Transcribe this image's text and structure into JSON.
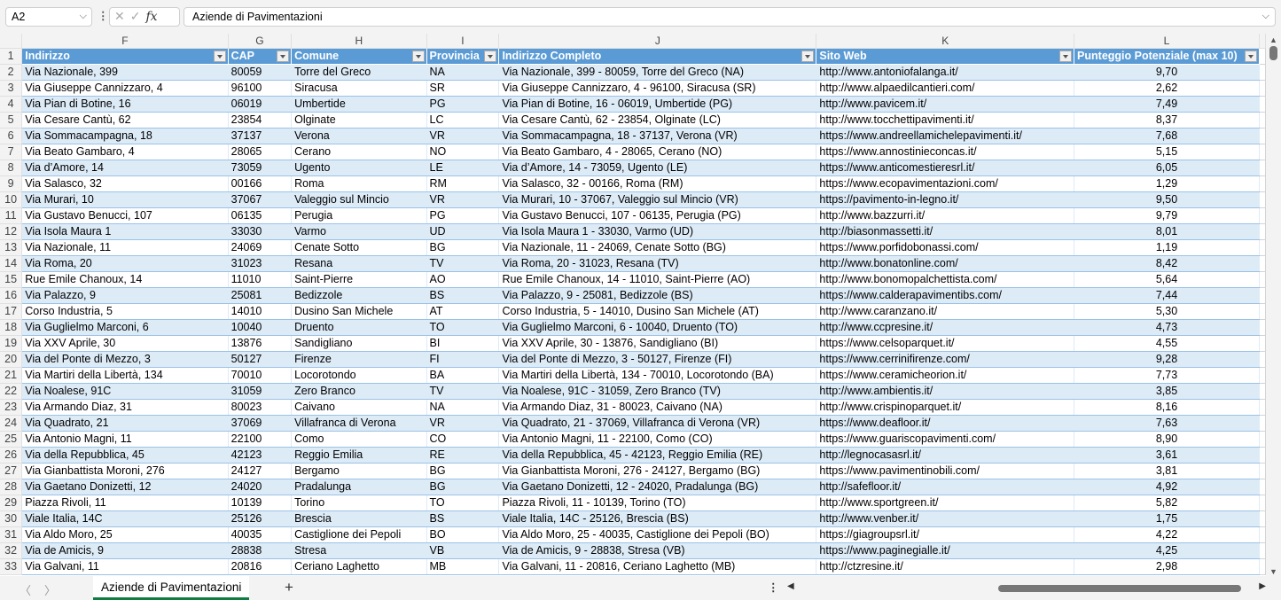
{
  "formula_bar": {
    "name_box": "A2",
    "formula": "Aziende di Pavimentazioni"
  },
  "columns": [
    "F",
    "G",
    "H",
    "I",
    "J",
    "K",
    "L"
  ],
  "headers": [
    "Indirizzo",
    "CAP",
    "Comune",
    "Provincia",
    "Indirizzo Completo",
    "Sito Web",
    "Punteggio Potenziale (max 10)"
  ],
  "rows": [
    [
      "2",
      "Via Nazionale, 399",
      "80059",
      "Torre del Greco",
      "NA",
      "Via Nazionale, 399 - 80059, Torre del Greco (NA)",
      "http://www.antoniofalanga.it/",
      "9,70"
    ],
    [
      "3",
      "Via Giuseppe Cannizzaro, 4",
      "96100",
      "Siracusa",
      "SR",
      "Via Giuseppe Cannizzaro, 4 - 96100, Siracusa (SR)",
      "http://www.alpaedilcantieri.com/",
      "2,62"
    ],
    [
      "4",
      "Via Pian di Botine, 16",
      "06019",
      "Umbertide",
      "PG",
      "Via Pian di Botine, 16 - 06019, Umbertide (PG)",
      "http://www.pavicem.it/",
      "7,49"
    ],
    [
      "5",
      "Via Cesare Cantù, 62",
      "23854",
      "Olginate",
      "LC",
      "Via Cesare Cantù, 62 - 23854, Olginate (LC)",
      "http://www.tocchettipavimenti.it/",
      "8,37"
    ],
    [
      "6",
      "Via Sommacampagna, 18",
      "37137",
      "Verona",
      "VR",
      "Via Sommacampagna, 18 - 37137, Verona (VR)",
      "https://www.andreellamichelepavimenti.it/",
      "7,68"
    ],
    [
      "7",
      "Via Beato Gambaro, 4",
      "28065",
      "Cerano",
      "NO",
      "Via Beato Gambaro, 4 - 28065, Cerano (NO)",
      "https://www.annostinieconcas.it/",
      "5,15"
    ],
    [
      "8",
      "Via d’Amore, 14",
      "73059",
      "Ugento",
      "LE",
      "Via d’Amore, 14 - 73059, Ugento (LE)",
      "https://www.anticomestieresrl.it/",
      "6,05"
    ],
    [
      "9",
      "Via Salasco, 32",
      "00166",
      "Roma",
      "RM",
      "Via Salasco, 32 - 00166, Roma (RM)",
      "https://www.ecopavimentazioni.com/",
      "1,29"
    ],
    [
      "10",
      "Via Murari, 10",
      "37067",
      "Valeggio sul Mincio",
      "VR",
      "Via Murari, 10 - 37067, Valeggio sul Mincio (VR)",
      "https://pavimento-in-legno.it/",
      "9,50"
    ],
    [
      "11",
      "Via Gustavo Benucci, 107",
      "06135",
      "Perugia",
      "PG",
      "Via Gustavo Benucci, 107 - 06135, Perugia (PG)",
      "http://www.bazzurri.it/",
      "9,79"
    ],
    [
      "12",
      "Via Isola Maura 1",
      "33030",
      "Varmo",
      "UD",
      "Via Isola Maura 1 - 33030, Varmo (UD)",
      "http://biasonmassetti.it/",
      "8,01"
    ],
    [
      "13",
      "Via Nazionale, 11",
      "24069",
      "Cenate Sotto",
      "BG",
      "Via Nazionale, 11 - 24069, Cenate Sotto (BG)",
      "https://www.porfidobonassi.com/",
      "1,19"
    ],
    [
      "14",
      "Via Roma, 20",
      "31023",
      "Resana",
      "TV",
      "Via Roma, 20 - 31023, Resana (TV)",
      "http://www.bonatonline.com/",
      "8,42"
    ],
    [
      "15",
      "Rue Emile Chanoux, 14",
      "11010",
      "Saint-Pierre",
      "AO",
      "Rue Emile Chanoux, 14 - 11010, Saint-Pierre (AO)",
      "http://www.bonomopalchettista.com/",
      "5,64"
    ],
    [
      "16",
      "Via Palazzo, 9",
      "25081",
      "Bedizzole",
      "BS",
      "Via Palazzo, 9 - 25081, Bedizzole (BS)",
      "https://www.calderapavimentibs.com/",
      "7,44"
    ],
    [
      "17",
      "Corso Industria, 5",
      "14010",
      "Dusino San Michele",
      "AT",
      "Corso Industria, 5 - 14010, Dusino San Michele (AT)",
      "http://www.caranzano.it/",
      "5,30"
    ],
    [
      "18",
      "Via Guglielmo Marconi, 6",
      "10040",
      "Druento",
      "TO",
      "Via Guglielmo Marconi, 6 - 10040, Druento (TO)",
      "http://www.ccpresine.it/",
      "4,73"
    ],
    [
      "19",
      "Via XXV Aprile, 30",
      "13876",
      "Sandigliano",
      "BI",
      "Via XXV Aprile, 30 - 13876, Sandigliano (BI)",
      "https://www.celsoparquet.it/",
      "4,55"
    ],
    [
      "20",
      "Via del Ponte di Mezzo, 3",
      "50127",
      "Firenze",
      "FI",
      "Via del Ponte di Mezzo, 3 - 50127, Firenze (FI)",
      "https://www.cerrinifirenze.com/",
      "9,28"
    ],
    [
      "21",
      "Via Martiri della Libertà, 134",
      "70010",
      "Locorotondo",
      "BA",
      "Via Martiri della Libertà, 134 - 70010, Locorotondo (BA)",
      "https://www.ceramicheorion.it/",
      "7,73"
    ],
    [
      "22",
      "Via Noalese, 91C",
      "31059",
      "Zero Branco",
      "TV",
      "Via Noalese, 91C - 31059, Zero Branco (TV)",
      "http://www.ambientis.it/",
      "3,85"
    ],
    [
      "23",
      "Via Armando Diaz, 31",
      "80023",
      "Caivano",
      "NA",
      "Via Armando Diaz, 31 - 80023, Caivano (NA)",
      "http://www.crispinoparquet.it/",
      "8,16"
    ],
    [
      "24",
      "Via Quadrato, 21",
      "37069",
      "Villafranca di Verona",
      "VR",
      "Via Quadrato, 21 - 37069, Villafranca di Verona (VR)",
      "https://www.deafloor.it/",
      "7,63"
    ],
    [
      "25",
      "Via Antonio Magni, 11",
      "22100",
      "Como",
      "CO",
      "Via Antonio Magni, 11 - 22100, Como (CO)",
      "https://www.guariscopavimenti.com/",
      "8,90"
    ],
    [
      "26",
      "Via della Repubblica, 45",
      "42123",
      "Reggio Emilia",
      "RE",
      "Via della Repubblica, 45 - 42123, Reggio Emilia (RE)",
      "http://legnocasasrl.it/",
      "3,61"
    ],
    [
      "27",
      "Via Gianbattista Moroni, 276",
      "24127",
      "Bergamo",
      "BG",
      "Via Gianbattista Moroni, 276 - 24127, Bergamo (BG)",
      "https://www.pavimentinobili.com/",
      "3,81"
    ],
    [
      "28",
      "Via Gaetano Donizetti, 12",
      "24020",
      "Pradalunga",
      "BG",
      "Via Gaetano Donizetti, 12 - 24020, Pradalunga (BG)",
      "http://safefloor.it/",
      "4,92"
    ],
    [
      "29",
      "Piazza Rivoli, 11",
      "10139",
      "Torino",
      "TO",
      "Piazza Rivoli, 11 - 10139, Torino (TO)",
      "http://www.sportgreen.it/",
      "5,82"
    ],
    [
      "30",
      "Viale Italia, 14C",
      "25126",
      "Brescia",
      "BS",
      "Viale Italia, 14C - 25126, Brescia (BS)",
      "http://www.venber.it/",
      "1,75"
    ],
    [
      "31",
      "Via Aldo Moro, 25",
      "40035",
      "Castiglione dei Pepoli",
      "BO",
      "Via Aldo Moro, 25 - 40035, Castiglione dei Pepoli (BO)",
      "https://giagroupsrl.it/",
      "4,22"
    ],
    [
      "32",
      "Via de Amicis, 9",
      "28838",
      "Stresa",
      "VB",
      "Via de Amicis, 9 - 28838, Stresa (VB)",
      "https://www.paginegialle.it/",
      "4,25"
    ],
    [
      "33",
      "Via Galvani, 11",
      "20816",
      "Ceriano Laghetto",
      "MB",
      "Via Galvani, 11 - 20816, Ceriano Laghetto (MB)",
      "http://ctzresine.it/",
      "2,98"
    ]
  ],
  "sheet_tabs": [
    "Aziende di Pavimentazioni"
  ],
  "colors": {
    "header": "#5b9bd5",
    "band": "#ddebf7",
    "active_tab": "#107c41"
  }
}
